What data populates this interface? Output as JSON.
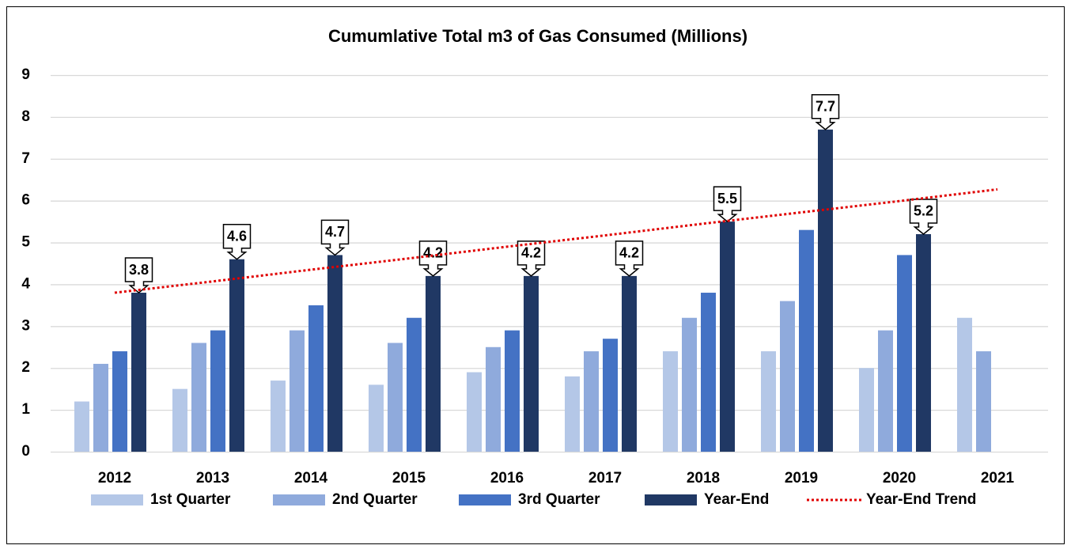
{
  "chart_data": {
    "type": "bar",
    "title": "Cumumlative Total m3 of Gas Consumed (Millions)",
    "categories": [
      "2012",
      "2013",
      "2014",
      "2015",
      "2016",
      "2017",
      "2018",
      "2019",
      "2020",
      "2021"
    ],
    "series": [
      {
        "name": "1st Quarter",
        "color": "#b4c7e7",
        "values": [
          1.2,
          1.5,
          1.7,
          1.6,
          1.9,
          1.8,
          2.4,
          2.4,
          2.0,
          3.2
        ]
      },
      {
        "name": "2nd Quarter",
        "color": "#8faadc",
        "values": [
          2.1,
          2.6,
          2.9,
          2.6,
          2.5,
          2.4,
          3.2,
          3.6,
          2.9,
          2.4
        ]
      },
      {
        "name": "3rd Quarter",
        "color": "#4472c4",
        "values": [
          2.4,
          2.9,
          3.5,
          3.2,
          2.9,
          2.7,
          3.8,
          5.3,
          4.7,
          null
        ]
      },
      {
        "name": "Year-End",
        "color": "#203864",
        "values": [
          3.8,
          4.6,
          4.7,
          4.2,
          4.2,
          4.2,
          5.5,
          7.7,
          5.2,
          null
        ],
        "data_labels": true
      },
      {
        "name": "Year-End Trend",
        "color": "#e00000",
        "type": "line",
        "line_style": "dotted",
        "values": [
          3.8,
          4.07,
          4.35,
          4.62,
          4.9,
          5.17,
          5.45,
          5.72,
          5.99,
          6.27
        ]
      }
    ],
    "ylim": [
      0,
      9
    ],
    "yticks": [
      0,
      1,
      2,
      3,
      4,
      5,
      6,
      7,
      8,
      9
    ],
    "grid": true,
    "legend": "bottom"
  }
}
